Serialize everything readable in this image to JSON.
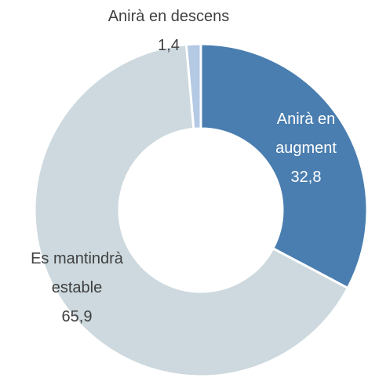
{
  "chart_data": {
    "type": "donut",
    "categories": [
      "Anirà en augment",
      "Es mantindrà estable",
      "Anirà en descens"
    ],
    "values": [
      32.8,
      65.9,
      1.4
    ],
    "value_labels": [
      "32,8",
      "65,9",
      "1,4"
    ],
    "colors": [
      "#4a7eb0",
      "#cdd9de",
      "#b4c9e4"
    ]
  }
}
